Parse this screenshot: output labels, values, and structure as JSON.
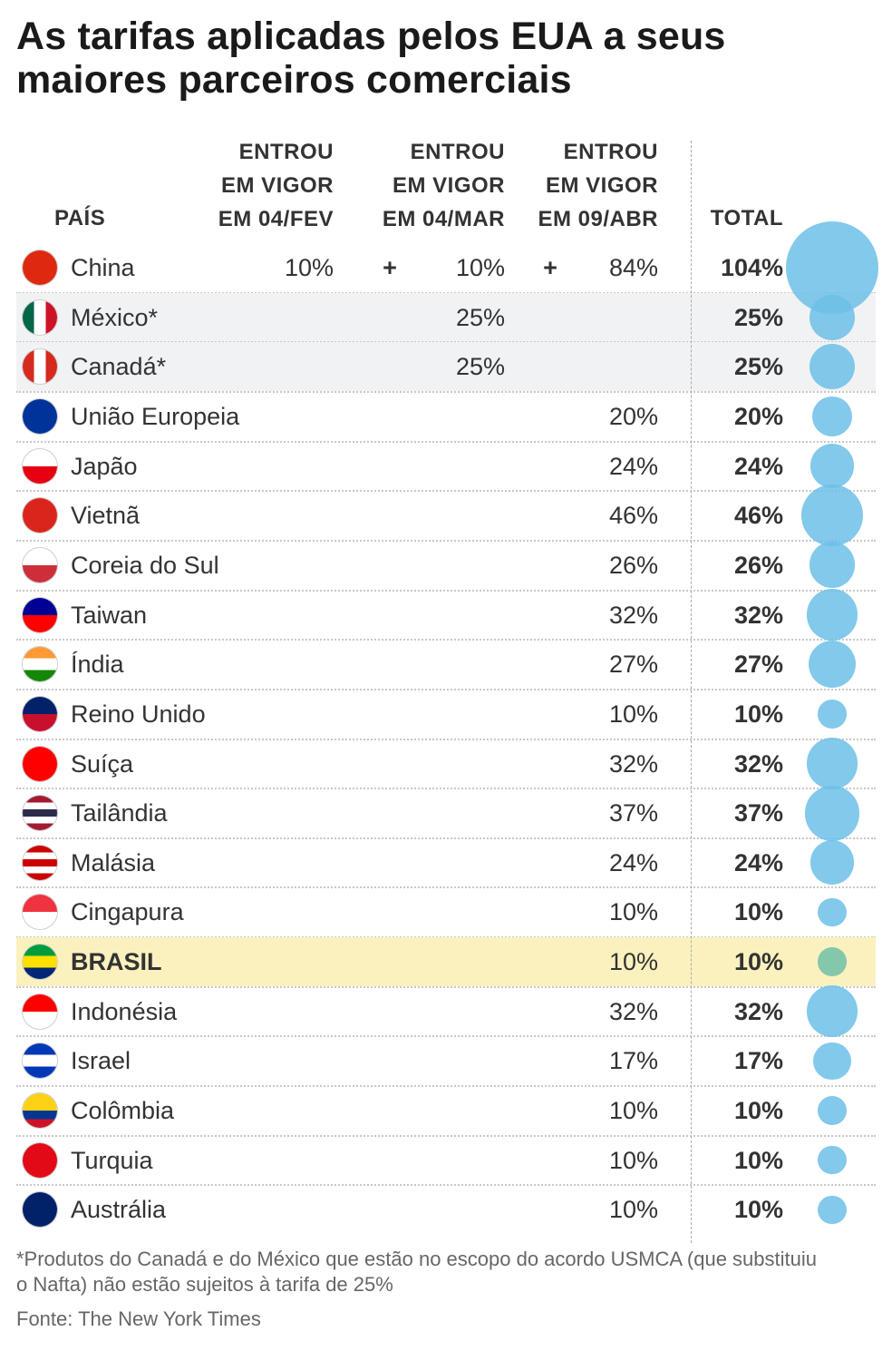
{
  "title": "As tarifas aplicadas pelos EUA a seus maiores parceiros comerciais",
  "headers": {
    "country": "PAÍS",
    "col1": [
      "ENTROU",
      "EM VIGOR",
      "EM 04/FEV"
    ],
    "col2": [
      "ENTROU",
      "EM VIGOR",
      "EM 04/MAR"
    ],
    "col3": [
      "ENTROU",
      "EM VIGOR",
      "EM 09/ABR"
    ],
    "total": "TOTAL"
  },
  "plus_sign": "+",
  "colors": {
    "bubble": "#6cc0e8",
    "bubble_brasil": "#6fbfa8",
    "highlight_gray": "#f1f2f4",
    "highlight_yellow": "#fbf1be"
  },
  "chart_data": {
    "type": "table",
    "title": "As tarifas aplicadas pelos EUA a seus maiores parceiros comerciais",
    "rows": [
      {
        "country": "China",
        "feb": "10%",
        "mar": "10%",
        "apr": "84%",
        "total": "104%",
        "total_value": 104,
        "flag": [
          "#de2910",
          "#de2910"
        ],
        "plus": true
      },
      {
        "country": "México*",
        "feb": "",
        "mar": "25%",
        "apr": "",
        "total": "25%",
        "total_value": 25,
        "flag": [
          "#006847",
          "#ffffff",
          "#ce1126"
        ],
        "highlight": "gray"
      },
      {
        "country": "Canadá*",
        "feb": "",
        "mar": "25%",
        "apr": "",
        "total": "25%",
        "total_value": 25,
        "flag": [
          "#d52b1e",
          "#ffffff",
          "#d52b1e"
        ],
        "highlight": "gray"
      },
      {
        "country": "União Europeia",
        "feb": "",
        "mar": "",
        "apr": "20%",
        "total": "20%",
        "total_value": 20,
        "flag": [
          "#003399",
          "#003399"
        ]
      },
      {
        "country": "Japão",
        "feb": "",
        "mar": "",
        "apr": "24%",
        "total": "24%",
        "total_value": 24,
        "flag": [
          "#ffffff",
          "#e60012"
        ]
      },
      {
        "country": "Vietnã",
        "feb": "",
        "mar": "",
        "apr": "46%",
        "total": "46%",
        "total_value": 46,
        "flag": [
          "#da251d",
          "#da251d"
        ]
      },
      {
        "country": "Coreia do Sul",
        "feb": "",
        "mar": "",
        "apr": "26%",
        "total": "26%",
        "total_value": 26,
        "flag": [
          "#ffffff",
          "#cd2e3a"
        ]
      },
      {
        "country": "Taiwan",
        "feb": "",
        "mar": "",
        "apr": "32%",
        "total": "32%",
        "total_value": 32,
        "flag": [
          "#000095",
          "#fe0000"
        ]
      },
      {
        "country": "Índia",
        "feb": "",
        "mar": "",
        "apr": "27%",
        "total": "27%",
        "total_value": 27,
        "flag": [
          "#ff9933",
          "#ffffff",
          "#138808"
        ]
      },
      {
        "country": "Reino Unido",
        "feb": "",
        "mar": "",
        "apr": "10%",
        "total": "10%",
        "total_value": 10,
        "flag": [
          "#012169",
          "#c8102e"
        ]
      },
      {
        "country": "Suíça",
        "feb": "",
        "mar": "",
        "apr": "32%",
        "total": "32%",
        "total_value": 32,
        "flag": [
          "#ff0000",
          "#ff0000"
        ]
      },
      {
        "country": "Tailândia",
        "feb": "",
        "mar": "",
        "apr": "37%",
        "total": "37%",
        "total_value": 37,
        "flag": [
          "#a51931",
          "#ffffff",
          "#2d2a4a",
          "#ffffff",
          "#a51931"
        ]
      },
      {
        "country": "Malásia",
        "feb": "",
        "mar": "",
        "apr": "24%",
        "total": "24%",
        "total_value": 24,
        "flag": [
          "#cc0001",
          "#ffffff",
          "#cc0001",
          "#ffffff",
          "#cc0001"
        ]
      },
      {
        "country": "Cingapura",
        "feb": "",
        "mar": "",
        "apr": "10%",
        "total": "10%",
        "total_value": 10,
        "flag": [
          "#ef3340",
          "#ffffff"
        ]
      },
      {
        "country": "BRASIL",
        "feb": "",
        "mar": "",
        "apr": "10%",
        "total": "10%",
        "total_value": 10,
        "flag": [
          "#009c3b",
          "#ffdf00",
          "#002776"
        ],
        "highlight": "yellow"
      },
      {
        "country": "Indonésia",
        "feb": "",
        "mar": "",
        "apr": "32%",
        "total": "32%",
        "total_value": 32,
        "flag": [
          "#ff0000",
          "#ffffff"
        ]
      },
      {
        "country": "Israel",
        "feb": "",
        "mar": "",
        "apr": "17%",
        "total": "17%",
        "total_value": 17,
        "flag": [
          "#0038b8",
          "#ffffff",
          "#0038b8"
        ]
      },
      {
        "country": "Colômbia",
        "feb": "",
        "mar": "",
        "apr": "10%",
        "total": "10%",
        "total_value": 10,
        "flag": [
          "#fcd116",
          "#fcd116",
          "#003893",
          "#ce1126"
        ]
      },
      {
        "country": "Turquia",
        "feb": "",
        "mar": "",
        "apr": "10%",
        "total": "10%",
        "total_value": 10,
        "flag": [
          "#e30a17",
          "#e30a17"
        ]
      },
      {
        "country": "Austrália",
        "feb": "",
        "mar": "",
        "apr": "10%",
        "total": "10%",
        "total_value": 10,
        "flag": [
          "#012169",
          "#012169"
        ]
      }
    ]
  },
  "footnote": "*Produtos do Canadá e do México que estão no escopo do acordo USMCA (que substituiu o Nafta) não estão sujeitos à tarifa de 25%",
  "source": "Fonte: The New York Times"
}
